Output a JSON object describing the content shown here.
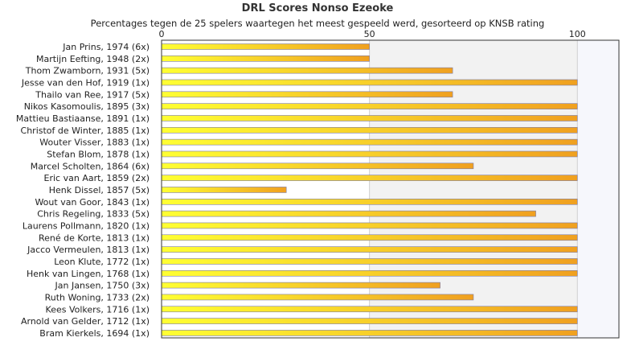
{
  "chart_data": {
    "type": "bar",
    "orientation": "horizontal",
    "title": "DRL Scores Nonso Ezeoke",
    "subtitle": "Percentages tegen de 25 spelers waartegen het meest gespeeld werd, gesorteerd op KNSB rating",
    "xlim": [
      0,
      110
    ],
    "xticks": [
      0,
      50,
      100
    ],
    "grid": true,
    "categories": [
      "Jan Prins, 1974 (6x)",
      "Martijn Eefting, 1948 (2x)",
      "Thom Zwamborn, 1931 (5x)",
      "Jesse van den Hof, 1919 (1x)",
      "Thailo van Ree, 1917 (5x)",
      "Nikos Kasomoulis, 1895 (3x)",
      "Mattieu Bastiaanse, 1891 (1x)",
      "Christof de Winter, 1885 (1x)",
      "Wouter Visser, 1883 (1x)",
      "Stefan Blom, 1878 (1x)",
      "Marcel Scholten, 1864 (6x)",
      "Eric van Aart, 1859 (2x)",
      "Henk Dissel, 1857 (5x)",
      "Wout van Goor, 1843 (1x)",
      "Chris Regeling, 1833 (5x)",
      "Laurens Pollmann, 1820 (1x)",
      "René de Korte, 1813 (1x)",
      "Jacco Vermeulen, 1813 (1x)",
      "Leon Klute, 1772 (1x)",
      "Henk van Lingen, 1768 (1x)",
      "Jan Jansen, 1750 (3x)",
      "Ruth Woning, 1733 (2x)",
      "Kees Volkers, 1716 (1x)",
      "Arnold van Gelder, 1712 (1x)",
      "Bram Kierkels, 1694 (1x)"
    ],
    "values": [
      50,
      50,
      70,
      100,
      70,
      100,
      100,
      100,
      100,
      100,
      75,
      100,
      30,
      100,
      90,
      100,
      100,
      100,
      100,
      100,
      67,
      75,
      100,
      100,
      100
    ],
    "colors": {
      "bar_start": "#ffff33",
      "bar_end": "#f0a020",
      "bar_edge": "#7a7aa8",
      "band_light": "#f2f2f2",
      "band_lighter": "#f6f7fc",
      "axis": "#333333",
      "grid": "#d0d0d0"
    }
  }
}
